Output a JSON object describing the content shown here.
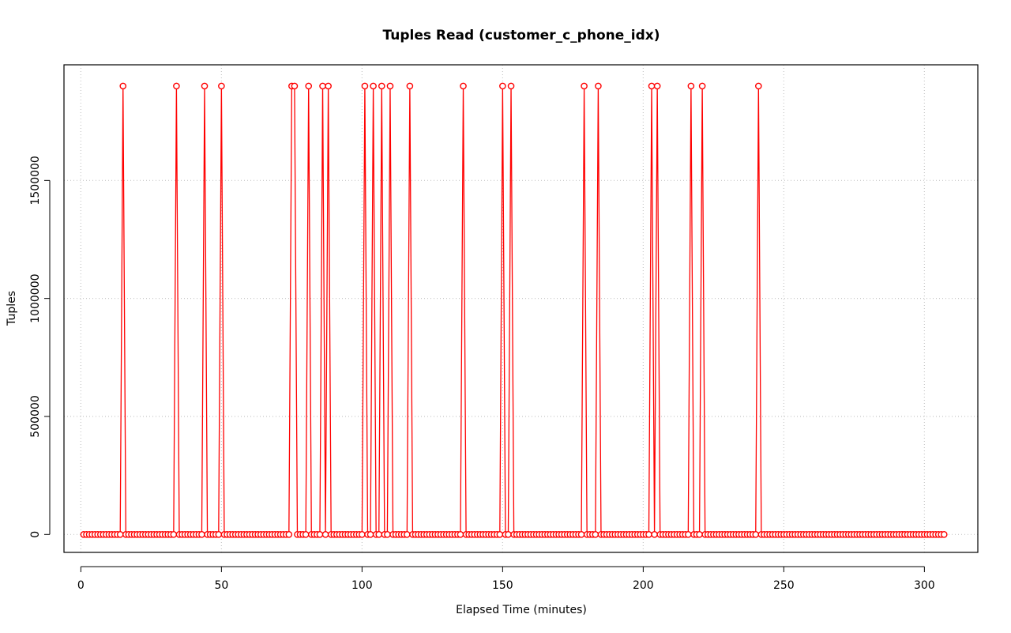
{
  "chart_data": {
    "type": "line",
    "title": "Tuples Read (customer_c_phone_idx)",
    "xlabel": "Elapsed Time (minutes)",
    "ylabel": "Tuples",
    "xlim": [
      -6,
      319
    ],
    "ylim": [
      -76000,
      1990000
    ],
    "x_ticks": [
      0,
      50,
      100,
      150,
      200,
      250,
      300
    ],
    "y_ticks": [
      0,
      500000,
      1000000,
      1500000
    ],
    "grid": true,
    "line_color": "#ff0000",
    "marker": "open-circle",
    "x_start": 1,
    "x_end": 307,
    "baseline_value": 0,
    "spike_value": 1900000,
    "spike_x": [
      15,
      34,
      44,
      50,
      75,
      76,
      81,
      86,
      88,
      101,
      104,
      107,
      110,
      117,
      136,
      150,
      153,
      179,
      184,
      203,
      205,
      217,
      221,
      241
    ]
  }
}
